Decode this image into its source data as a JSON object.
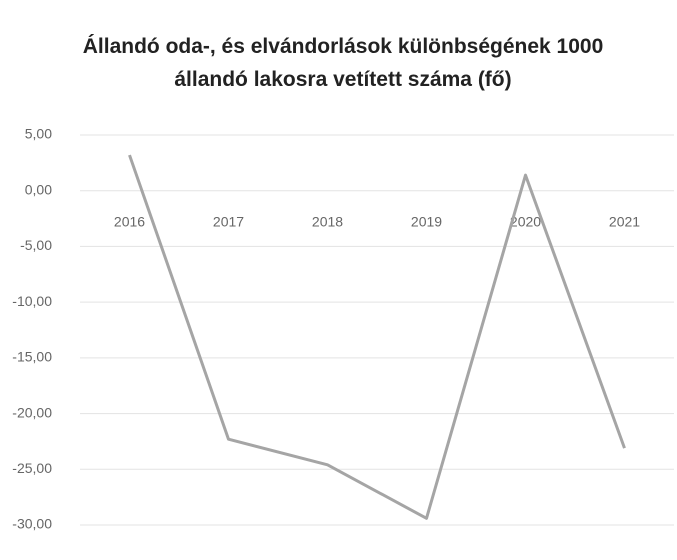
{
  "chart_data": {
    "type": "line",
    "title": "Állandó oda-, és elvándorlások különbségének 1000 állandó lakosra vetített száma (fő)",
    "categories": [
      "2016",
      "2017",
      "2018",
      "2019",
      "2020",
      "2021"
    ],
    "series": [
      {
        "color": "#a5a5a5",
        "values": [
          3.2,
          -22.3,
          -24.6,
          -29.4,
          1.4,
          -23.1
        ]
      }
    ],
    "ylim": [
      -30,
      5
    ],
    "yticks": [
      {
        "value": 5,
        "label": "5,00"
      },
      {
        "value": 0,
        "label": "0,00"
      },
      {
        "value": -5,
        "label": "-5,00"
      },
      {
        "value": -10,
        "label": "-10,00"
      },
      {
        "value": -15,
        "label": "-15,00"
      },
      {
        "value": -20,
        "label": "-20,00"
      },
      {
        "value": -25,
        "label": "-25,00"
      },
      {
        "value": -30,
        "label": "-30,00"
      }
    ],
    "grid": true
  }
}
